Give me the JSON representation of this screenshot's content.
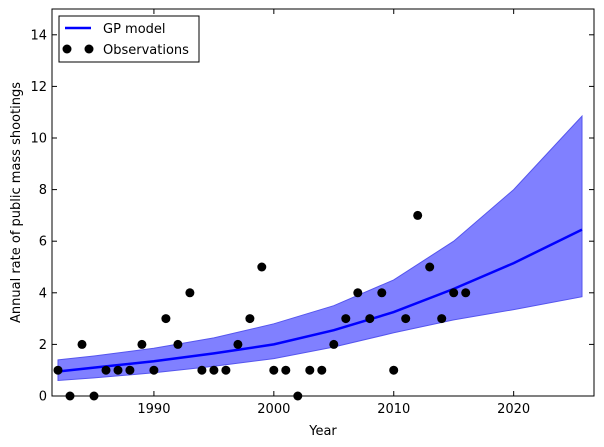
{
  "chart_data": {
    "type": "line",
    "xlabel": "Year",
    "ylabel": "Annual rate of public mass shootings",
    "xlim": [
      1981.5,
      2026.7
    ],
    "ylim": [
      0,
      15
    ],
    "xticks": [
      1990,
      2000,
      2010,
      2020
    ],
    "yticks": [
      0,
      2,
      4,
      6,
      8,
      10,
      12,
      14
    ],
    "legend_position": "top-left",
    "legend": [
      "GP model",
      "Observations"
    ],
    "colors": {
      "model": "#0000ff",
      "band": "#8080ff",
      "band_edge": "#5555ee",
      "observations": "#000000"
    },
    "gp_model": {
      "x": [
        1982,
        1985,
        1990,
        1995,
        2000,
        2005,
        2010,
        2015,
        2020,
        2025.7
      ],
      "mean": [
        0.95,
        1.1,
        1.35,
        1.65,
        2.0,
        2.55,
        3.25,
        4.15,
        5.15,
        6.45
      ],
      "lower": [
        0.6,
        0.7,
        0.9,
        1.15,
        1.45,
        1.9,
        2.45,
        2.95,
        3.35,
        3.85
      ],
      "upper": [
        1.4,
        1.55,
        1.85,
        2.25,
        2.8,
        3.5,
        4.5,
        6.0,
        8.0,
        10.85
      ]
    },
    "observations": {
      "x": [
        1982,
        1983,
        1984,
        1985,
        1986,
        1987,
        1988,
        1989,
        1990,
        1991,
        1992,
        1993,
        1994,
        1995,
        1996,
        1997,
        1998,
        1999,
        2000,
        2001,
        2002,
        2003,
        2004,
        2005,
        2006,
        2007,
        2008,
        2009,
        2010,
        2011,
        2012,
        2013,
        2014,
        2015,
        2016
      ],
      "y": [
        1,
        0,
        2,
        0,
        1,
        1,
        1,
        2,
        1,
        3,
        2,
        4,
        1,
        1,
        1,
        2,
        3,
        5,
        1,
        1,
        0,
        1,
        1,
        2,
        3,
        4,
        3,
        4,
        1,
        3,
        7,
        5,
        3,
        4,
        4
      ]
    }
  }
}
